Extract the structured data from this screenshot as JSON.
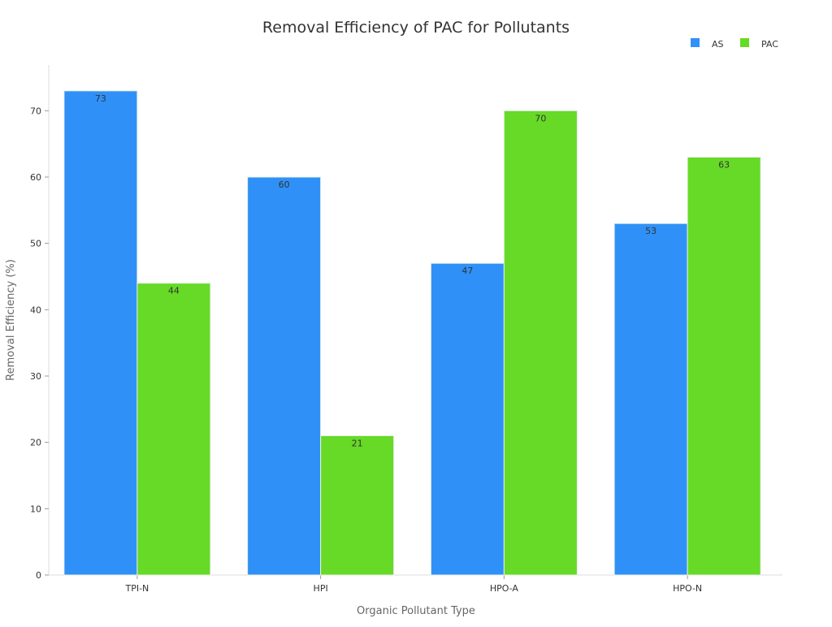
{
  "chart_data": {
    "type": "bar",
    "title": "Removal Efficiency of PAC for Pollutants",
    "xlabel": "Organic Pollutant Type",
    "ylabel": "Removal Efficiency (%)",
    "categories": [
      "TPI-N",
      "HPI",
      "HPO-A",
      "HPO-N"
    ],
    "series": [
      {
        "name": "AS",
        "values": [
          73,
          60,
          47,
          53
        ],
        "color": "#2F91F7"
      },
      {
        "name": "PAC",
        "values": [
          44,
          21,
          70,
          63
        ],
        "color": "#66DA26"
      }
    ],
    "yticks": [
      0,
      10,
      20,
      30,
      40,
      50,
      60,
      70
    ],
    "ylim": [
      0,
      76.9
    ],
    "grid": false,
    "legend_position": "top-right",
    "data_labels": true
  }
}
